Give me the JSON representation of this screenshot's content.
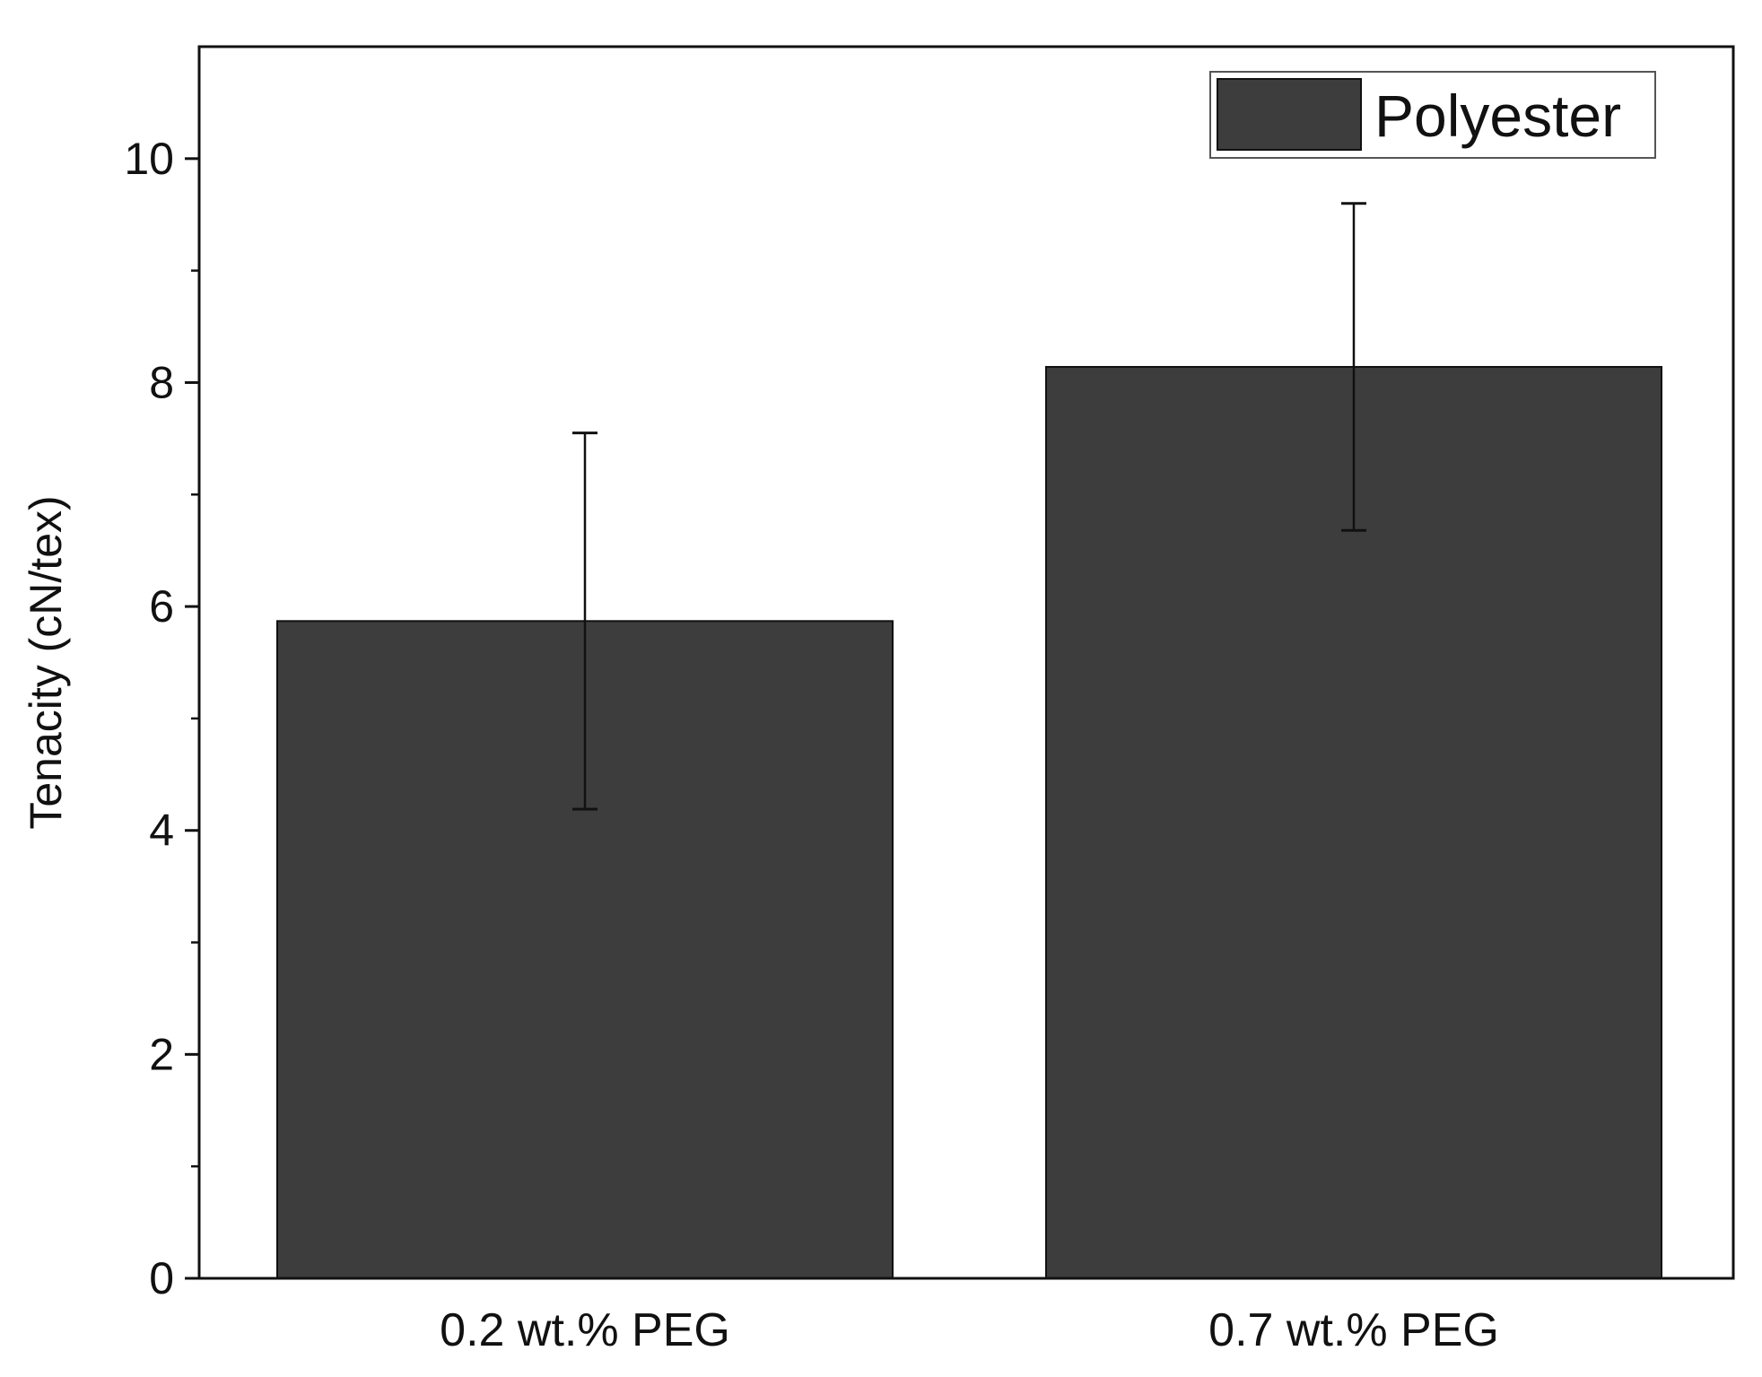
{
  "chart_data": {
    "type": "bar",
    "title": "",
    "xlabel": "",
    "ylabel": "Tenacity (cN/tex)",
    "categories": [
      "0.2 wt.% PEG",
      "0.7 wt.% PEG"
    ],
    "series": [
      {
        "name": "Polyester",
        "values": [
          5.87,
          8.14
        ],
        "error": [
          1.68,
          1.46
        ],
        "color": "#3d3d3d"
      }
    ],
    "ylim": [
      0,
      11
    ],
    "yticks": [
      0,
      2,
      4,
      6,
      8,
      10
    ],
    "ytick_labels": [
      "0",
      "2",
      "4",
      "6",
      "8",
      "10"
    ],
    "grid": false,
    "legend": {
      "position": "top-right",
      "label": "Polyester"
    }
  }
}
